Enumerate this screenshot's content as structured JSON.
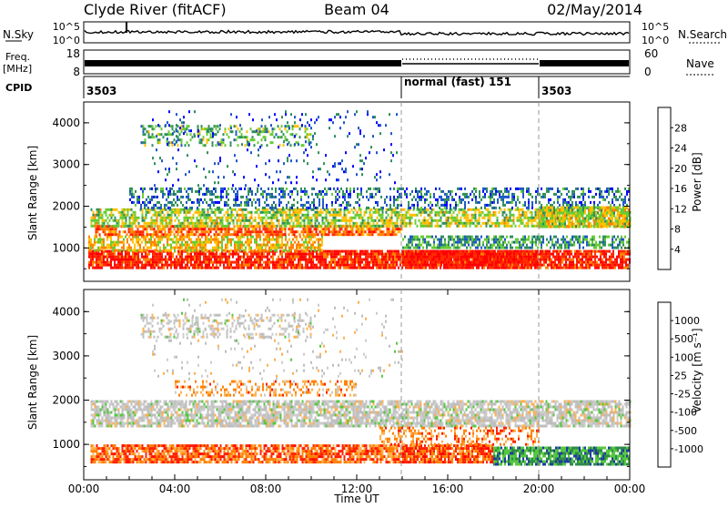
{
  "header": {
    "station": "Clyde River (fitACF)",
    "beam": "Beam 04",
    "date": "02/May/2014"
  },
  "noise_panel": {
    "left_label": "N.Sky",
    "right_label": "N.Search",
    "ticks": [
      "10^5",
      "10^0"
    ]
  },
  "freq_panel": {
    "left_label_top": "Freq.",
    "left_label_bottom": "[MHz]",
    "left_ticks": [
      "18",
      "8"
    ],
    "right_ticks": [
      "60",
      "0"
    ],
    "right_label": "Nave"
  },
  "cpid_panel": {
    "label": "CPID",
    "segments": [
      {
        "text": "3503",
        "start_hour": 0
      },
      {
        "text": "normal (fast) 151",
        "start_hour": 14
      },
      {
        "text": "3503",
        "start_hour": 20
      }
    ]
  },
  "chart_data": [
    {
      "type": "heatmap",
      "parameter": "Power",
      "ylabel": "Slant Range [km]",
      "xlim_hours": [
        0,
        24
      ],
      "ylim": [
        200,
        4500
      ],
      "y_ticks": [
        "1000",
        "2000",
        "3000",
        "4000"
      ],
      "colorbar_label": "Power [dB]",
      "colorbar_ticks": [
        "4",
        "8",
        "12",
        "16",
        "20",
        "24",
        "28"
      ],
      "colors": [
        "#0000ff",
        "#1e56c8",
        "#2f8f5a",
        "#66cc33",
        "#ffc000",
        "#ff8000",
        "#ff2a00",
        "#ff0000"
      ],
      "bands": [
        {
          "t0": 0.2,
          "t1": 24,
          "r0": 550,
          "r1": 950,
          "level": 6.3,
          "density": 0.85
        },
        {
          "t0": 0.2,
          "t1": 10.5,
          "r0": 950,
          "r1": 1300,
          "level": 4.2,
          "density": 0.65
        },
        {
          "t0": 0.5,
          "t1": 14,
          "r0": 1300,
          "r1": 1550,
          "level": 5.4,
          "density": 0.75
        },
        {
          "t0": 0.3,
          "t1": 24,
          "r0": 1550,
          "r1": 1950,
          "level": 3.3,
          "density": 0.65
        },
        {
          "t0": 2,
          "t1": 24,
          "r0": 1950,
          "r1": 2450,
          "level": 1.4,
          "density": 0.4
        },
        {
          "t0": 2.5,
          "t1": 10,
          "r0": 3450,
          "r1": 3950,
          "level": 2.6,
          "density": 0.35
        },
        {
          "t0": 14,
          "t1": 20,
          "r0": 600,
          "r1": 950,
          "level": 6.6,
          "density": 0.95
        },
        {
          "t0": 14,
          "t1": 24,
          "r0": 1000,
          "r1": 1300,
          "level": 2.2,
          "density": 0.6
        },
        {
          "t0": 3,
          "t1": 14,
          "r0": 2500,
          "r1": 4300,
          "level": 0.9,
          "density": 0.07
        },
        {
          "t0": 20,
          "t1": 24,
          "r0": 1500,
          "r1": 2000,
          "level": 3.6,
          "density": 0.8
        }
      ]
    },
    {
      "type": "heatmap",
      "parameter": "Velocity",
      "ylabel": "Slant Range [km]",
      "xlim_hours": [
        0,
        24
      ],
      "ylim": [
        200,
        4500
      ],
      "y_ticks": [
        "1000",
        "2000",
        "3000",
        "4000"
      ],
      "x_ticks": [
        "00:00",
        "04:00",
        "08:00",
        "12:00",
        "16:00",
        "20:00",
        "00:00"
      ],
      "xlabel": "Time UT",
      "colorbar_label": "Velocity [m s⁻¹]",
      "colorbar_ticks": [
        "1000",
        "500",
        "100",
        "25",
        "-25",
        "-100",
        "-500",
        "-1000"
      ],
      "colors": [
        "#1f3aa6",
        "#2f8a4a",
        "#55c840",
        "#bebebe",
        "#cccccc",
        "#ffb050",
        "#ff8000",
        "#ff2000",
        "#ff0000"
      ],
      "bands": [
        {
          "t0": 0.3,
          "t1": 14,
          "r0": 600,
          "r1": 1000,
          "level": 6.3,
          "density": 0.8
        },
        {
          "t0": 14,
          "t1": 18,
          "r0": 600,
          "r1": 1000,
          "level": 6.5,
          "density": 0.9
        },
        {
          "t0": 18,
          "t1": 24,
          "r0": 550,
          "r1": 950,
          "level": 1.2,
          "density": 0.85
        },
        {
          "t0": 0.3,
          "t1": 24,
          "r0": 1400,
          "r1": 2000,
          "level": 3.5,
          "density": 0.75
        },
        {
          "t0": 4,
          "t1": 12,
          "r0": 2100,
          "r1": 2450,
          "level": 5.5,
          "density": 0.4
        },
        {
          "t0": 2.5,
          "t1": 10,
          "r0": 3450,
          "r1": 3950,
          "level": 3.6,
          "density": 0.35
        },
        {
          "t0": 13,
          "t1": 20,
          "r0": 1000,
          "r1": 1400,
          "level": 5.8,
          "density": 0.4
        },
        {
          "t0": 3,
          "t1": 14,
          "r0": 2500,
          "r1": 4300,
          "level": 3.6,
          "density": 0.06
        }
      ]
    }
  ]
}
